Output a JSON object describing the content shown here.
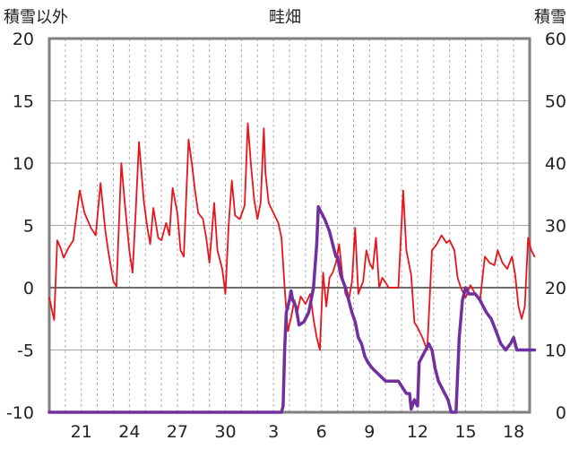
{
  "chart_data": {
    "type": "line",
    "title": "畦畑",
    "ylabel_left": "積雪以外",
    "ylabel_right": "積雪",
    "x_tick_labels": [
      "21",
      "24",
      "27",
      "30",
      "3",
      "6",
      "9",
      "12",
      "15",
      "18"
    ],
    "left_axis": {
      "range": [
        -10,
        20
      ],
      "ticks": [
        "-10",
        "-5",
        "0",
        "5",
        "10",
        "15",
        "20"
      ]
    },
    "right_axis": {
      "range": [
        0,
        60
      ],
      "ticks": [
        "0",
        "10",
        "20",
        "30",
        "40",
        "50",
        "60"
      ]
    },
    "grid": true,
    "x_range": [
      19,
      49
    ],
    "series": [
      {
        "axis": "left",
        "color": "#e8141a",
        "points": [
          [
            19.0,
            -0.8
          ],
          [
            19.3,
            -2.6
          ],
          [
            19.5,
            3.8
          ],
          [
            19.7,
            3.2
          ],
          [
            19.9,
            2.4
          ],
          [
            20.2,
            3.2
          ],
          [
            20.5,
            3.8
          ],
          [
            20.9,
            7.8
          ],
          [
            21.2,
            6.0
          ],
          [
            21.6,
            4.8
          ],
          [
            21.9,
            4.2
          ],
          [
            22.2,
            8.4
          ],
          [
            22.5,
            4.6
          ],
          [
            22.7,
            2.8
          ],
          [
            23.0,
            0.5
          ],
          [
            23.2,
            0.1
          ],
          [
            23.5,
            10.0
          ],
          [
            23.7,
            7.0
          ],
          [
            24.0,
            3.0
          ],
          [
            24.2,
            1.2
          ],
          [
            24.4,
            6.2
          ],
          [
            24.6,
            11.7
          ],
          [
            24.9,
            7.0
          ],
          [
            25.1,
            5.0
          ],
          [
            25.3,
            3.5
          ],
          [
            25.5,
            6.4
          ],
          [
            25.8,
            4.0
          ],
          [
            26.0,
            3.8
          ],
          [
            26.3,
            5.2
          ],
          [
            26.5,
            4.2
          ],
          [
            26.7,
            8.0
          ],
          [
            27.0,
            6.0
          ],
          [
            27.2,
            3.0
          ],
          [
            27.4,
            2.5
          ],
          [
            27.7,
            11.9
          ],
          [
            27.9,
            10.0
          ],
          [
            28.1,
            7.8
          ],
          [
            28.3,
            6.0
          ],
          [
            28.6,
            5.5
          ],
          [
            28.8,
            4.0
          ],
          [
            29.0,
            2.0
          ],
          [
            29.3,
            6.8
          ],
          [
            29.5,
            3.0
          ],
          [
            29.8,
            1.5
          ],
          [
            30.0,
            -0.5
          ],
          [
            30.2,
            5.0
          ],
          [
            30.4,
            8.6
          ],
          [
            30.6,
            5.8
          ],
          [
            30.9,
            5.5
          ],
          [
            31.2,
            6.6
          ],
          [
            31.4,
            13.2
          ],
          [
            31.6,
            9.8
          ],
          [
            31.8,
            7.0
          ],
          [
            32.0,
            5.5
          ],
          [
            32.2,
            6.8
          ],
          [
            32.4,
            12.8
          ],
          [
            32.5,
            9.2
          ],
          [
            32.7,
            6.8
          ],
          [
            33.0,
            6.0
          ],
          [
            33.3,
            5.2
          ],
          [
            33.5,
            4.0
          ],
          [
            33.7,
            0.0
          ],
          [
            33.9,
            -3.5
          ],
          [
            34.1,
            -2.4
          ],
          [
            34.3,
            -1.0
          ],
          [
            34.5,
            -1.9
          ],
          [
            34.7,
            -0.7
          ],
          [
            35.0,
            -1.3
          ],
          [
            35.3,
            -0.5
          ],
          [
            35.5,
            -2.5
          ],
          [
            35.7,
            -4.0
          ],
          [
            35.9,
            -5.0
          ],
          [
            36.1,
            1.2
          ],
          [
            36.3,
            -1.5
          ],
          [
            36.5,
            0.8
          ],
          [
            36.7,
            1.2
          ],
          [
            36.9,
            2.0
          ],
          [
            37.1,
            3.5
          ],
          [
            37.3,
            1.0
          ],
          [
            37.5,
            -0.5
          ],
          [
            37.7,
            -1.0
          ],
          [
            37.9,
            0.5
          ],
          [
            38.1,
            4.8
          ],
          [
            38.3,
            -0.5
          ],
          [
            38.6,
            0.5
          ],
          [
            38.8,
            3.0
          ],
          [
            39.0,
            2.0
          ],
          [
            39.2,
            1.5
          ],
          [
            39.4,
            4.0
          ],
          [
            39.6,
            0.0
          ],
          [
            39.8,
            0.8
          ],
          [
            40.2,
            0.0
          ],
          [
            40.8,
            0.0
          ],
          [
            41.1,
            7.8
          ],
          [
            41.3,
            3.0
          ],
          [
            41.6,
            1.0
          ],
          [
            41.8,
            -2.8
          ],
          [
            42.0,
            -3.2
          ],
          [
            42.3,
            -4.0
          ],
          [
            42.6,
            -5.0
          ],
          [
            42.9,
            3.0
          ],
          [
            43.2,
            3.5
          ],
          [
            43.5,
            4.2
          ],
          [
            43.8,
            3.6
          ],
          [
            44.0,
            3.8
          ],
          [
            44.3,
            3.0
          ],
          [
            44.5,
            0.8
          ],
          [
            44.7,
            0.0
          ],
          [
            45.0,
            -0.8
          ],
          [
            45.3,
            0.2
          ],
          [
            45.6,
            -0.5
          ],
          [
            45.9,
            -1.0
          ],
          [
            46.2,
            2.5
          ],
          [
            46.5,
            2.0
          ],
          [
            46.8,
            1.8
          ],
          [
            47.0,
            3.0
          ],
          [
            47.3,
            2.0
          ],
          [
            47.6,
            1.5
          ],
          [
            47.9,
            2.5
          ],
          [
            48.1,
            1.0
          ],
          [
            48.3,
            -1.5
          ],
          [
            48.5,
            -2.5
          ],
          [
            48.7,
            -1.5
          ],
          [
            48.9,
            4.0
          ],
          [
            49.1,
            3.0
          ],
          [
            49.3,
            2.5
          ]
        ]
      },
      {
        "axis": "right",
        "color": "#7030a0",
        "points": [
          [
            19.0,
            0
          ],
          [
            33.5,
            0
          ],
          [
            33.6,
            1
          ],
          [
            33.7,
            10
          ],
          [
            33.8,
            16
          ],
          [
            34.0,
            18
          ],
          [
            34.1,
            19.5
          ],
          [
            34.2,
            18
          ],
          [
            34.4,
            17
          ],
          [
            34.6,
            14
          ],
          [
            34.9,
            14.5
          ],
          [
            35.2,
            16
          ],
          [
            35.5,
            20
          ],
          [
            35.7,
            27
          ],
          [
            35.8,
            33
          ],
          [
            36.0,
            32
          ],
          [
            36.2,
            31
          ],
          [
            36.5,
            29
          ],
          [
            36.7,
            27
          ],
          [
            36.9,
            25
          ],
          [
            37.0,
            25
          ],
          [
            37.2,
            22
          ],
          [
            37.5,
            20
          ],
          [
            37.7,
            18
          ],
          [
            37.9,
            16
          ],
          [
            38.1,
            14.5
          ],
          [
            38.3,
            12
          ],
          [
            38.5,
            11
          ],
          [
            38.7,
            9
          ],
          [
            38.9,
            8
          ],
          [
            39.2,
            7
          ],
          [
            39.6,
            6
          ],
          [
            40.0,
            5
          ],
          [
            40.8,
            5
          ],
          [
            41.3,
            3
          ],
          [
            41.5,
            3
          ],
          [
            41.6,
            0.5
          ],
          [
            41.8,
            2
          ],
          [
            42.0,
            1
          ],
          [
            42.1,
            8
          ],
          [
            42.3,
            9
          ],
          [
            42.5,
            10
          ],
          [
            42.7,
            11
          ],
          [
            42.9,
            10
          ],
          [
            43.1,
            7
          ],
          [
            43.3,
            5
          ],
          [
            43.5,
            4
          ],
          [
            43.7,
            3
          ],
          [
            43.9,
            2
          ],
          [
            44.1,
            0
          ],
          [
            44.4,
            0
          ],
          [
            44.6,
            12
          ],
          [
            44.8,
            18
          ],
          [
            45.0,
            20
          ],
          [
            45.2,
            19
          ],
          [
            45.6,
            19
          ],
          [
            45.9,
            18
          ],
          [
            46.1,
            17
          ],
          [
            46.3,
            16
          ],
          [
            46.6,
            15
          ],
          [
            46.9,
            13
          ],
          [
            47.2,
            11
          ],
          [
            47.5,
            10
          ],
          [
            47.8,
            11
          ],
          [
            48.0,
            12
          ],
          [
            48.2,
            10
          ],
          [
            49.3,
            10
          ]
        ]
      }
    ]
  }
}
